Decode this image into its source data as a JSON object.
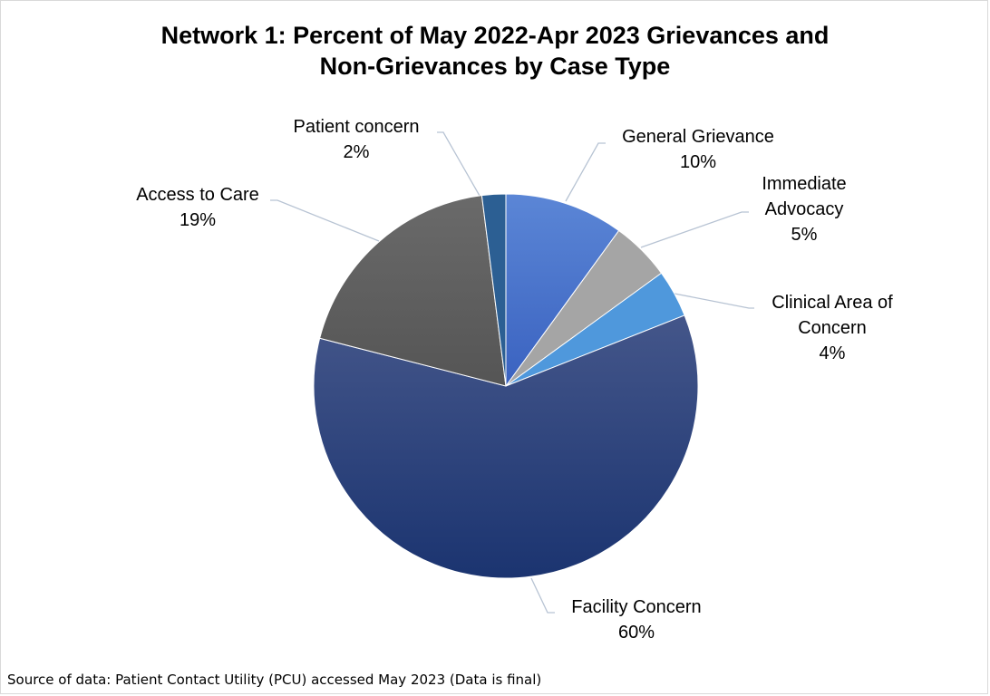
{
  "chart_data": {
    "type": "pie",
    "title_lines": [
      "Network 1:  Percent of May 2022-Apr 2023 Grievances and",
      "Non-Grievances by Case Type"
    ],
    "slices": [
      {
        "label_lines": [
          "General Grievance"
        ],
        "value": 10,
        "value_label": "10%",
        "color": "#4472c4"
      },
      {
        "label_lines": [
          "Immediate",
          "Advocacy"
        ],
        "value": 5,
        "value_label": "5%",
        "color": "#a5a5a5"
      },
      {
        "label_lines": [
          "Clinical Area of",
          "Concern"
        ],
        "value": 4,
        "value_label": "4%",
        "color": "#4f98dc"
      },
      {
        "label_lines": [
          "Facility Concern"
        ],
        "value": 60,
        "value_label": "60%",
        "color": "#1f3a75"
      },
      {
        "label_lines": [
          "Access to Care"
        ],
        "value": 19,
        "value_label": "19%",
        "color": "#606060"
      },
      {
        "label_lines": [
          "Patient concern"
        ],
        "value": 2,
        "value_label": "2%",
        "color": "#2c5f93"
      }
    ],
    "legend": "none"
  },
  "footer": {
    "source": "Source of data:  Patient Contact Utility (PCU) accessed May 2023 (Data is final)"
  }
}
